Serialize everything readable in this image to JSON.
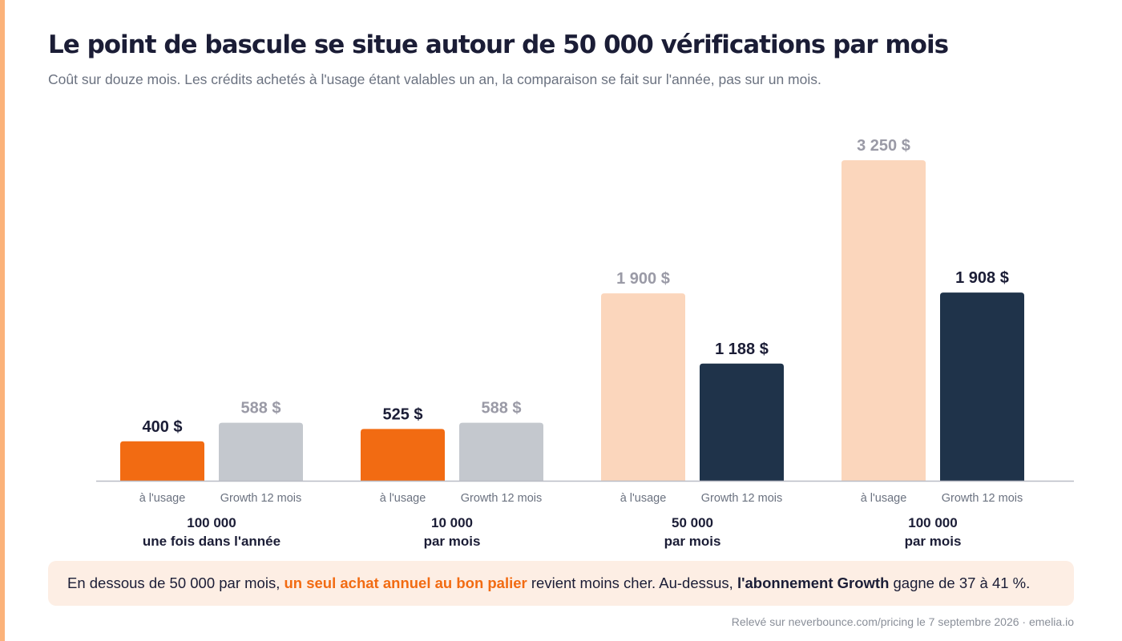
{
  "header": {
    "title": "Le point de bascule se situe autour de 50 000 vérifications par mois",
    "subtitle": "Coût sur douze mois. Les crédits achetés à l'usage étant valables un an, la comparaison se fait sur l'année, pas sur un mois."
  },
  "chart_data": {
    "type": "bar",
    "title": "Le point de bascule se situe autour de 50 000 vérifications par mois",
    "ylim": [
      0,
      3250
    ],
    "grid": false,
    "legend": "none",
    "groups": [
      {
        "line1": "100 000",
        "line2": "une fois dans l'année",
        "bars": [
          {
            "label": "à l'usage",
            "value": 400,
            "value_label": "400 $",
            "color": "#f26b12",
            "label_color": "#1b1d36"
          },
          {
            "label": "Growth 12 mois",
            "value": 588,
            "value_label": "588 $",
            "color": "#c4c8ce",
            "label_color": "#9a9aa6"
          }
        ]
      },
      {
        "line1": "10 000",
        "line2": "par mois",
        "bars": [
          {
            "label": "à l'usage",
            "value": 525,
            "value_label": "525 $",
            "color": "#f26b12",
            "label_color": "#1b1d36"
          },
          {
            "label": "Growth 12 mois",
            "value": 588,
            "value_label": "588 $",
            "color": "#c4c8ce",
            "label_color": "#9a9aa6"
          }
        ]
      },
      {
        "line1": "50 000",
        "line2": "par mois",
        "bars": [
          {
            "label": "à l'usage",
            "value": 1900,
            "value_label": "1 900 $",
            "color": "#fbd6bc",
            "label_color": "#9a9aa6"
          },
          {
            "label": "Growth 12 mois",
            "value": 1188,
            "value_label": "1 188 $",
            "color": "#1f334a",
            "label_color": "#1b1d36"
          }
        ]
      },
      {
        "line1": "100 000",
        "line2": "par mois",
        "bars": [
          {
            "label": "à l'usage",
            "value": 3250,
            "value_label": "3 250 $",
            "color": "#fbd6bc",
            "label_color": "#9a9aa6"
          },
          {
            "label": "Growth 12 mois",
            "value": 1908,
            "value_label": "1 908 $",
            "color": "#1f334a",
            "label_color": "#1b1d36"
          }
        ]
      }
    ]
  },
  "note": {
    "part1": "En dessous de 50 000 par mois, ",
    "highlight1": "un seul achat annuel au bon palier",
    "part2": " revient moins cher. Au-dessus, ",
    "highlight2": "l'abonnement Growth",
    "part3": " gagne de 37 à 41 %."
  },
  "source": "Relevé sur neverbounce.com/pricing le 7 septembre 2026 · emelia.io",
  "colors": {
    "accent": "#fbb27a",
    "orange": "#f26b12",
    "peach": "#fbd6bc",
    "gray": "#c4c8ce",
    "navy": "#1f334a",
    "note_bg": "#fdeee4"
  }
}
